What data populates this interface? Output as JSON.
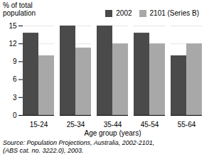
{
  "chart_data": {
    "type": "bar",
    "categories": [
      "15-24",
      "25-34",
      "35-44",
      "45-54",
      "55-64"
    ],
    "series": [
      {
        "name": "2002",
        "color": "#4a4a4a",
        "values": [
          13.8,
          15.0,
          15.0,
          13.8,
          10.0
        ]
      },
      {
        "name": "2101 (Series B)",
        "color": "#a8a8a8",
        "values": [
          10.0,
          11.3,
          12.0,
          12.0,
          12.0
        ]
      }
    ],
    "ylabel": "% of total\npopulation",
    "xlabel": "Age group (years)",
    "caption": "Source: Population Projections, Australia, 2002-2101,\n(ABS cat. no. 3222.0), 2003.",
    "ylim": [
      0,
      15
    ],
    "yticks": [
      0,
      3,
      6,
      9,
      12,
      15
    ],
    "grid": true,
    "legend": "upper right"
  }
}
